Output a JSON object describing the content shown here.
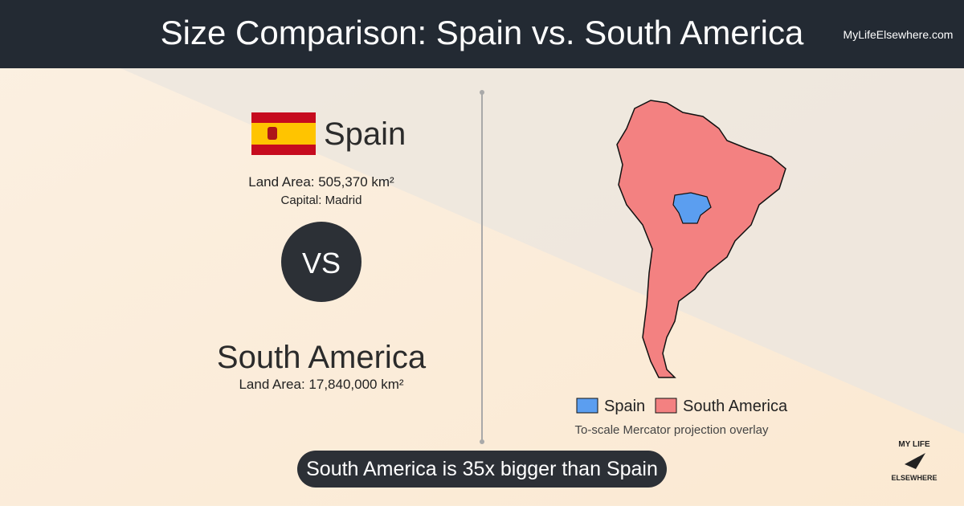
{
  "header": {
    "title": "Size Comparison: Spain vs. South America",
    "site": "MyLifeElsewhere.com"
  },
  "country1": {
    "name": "Spain",
    "land_area": "Land Area: 505,370 km²",
    "capital": "Capital: Madrid"
  },
  "vs": "VS",
  "country2": {
    "name": "South America",
    "land_area": "Land Area: 17,840,000 km²"
  },
  "legend": {
    "items": [
      "Spain",
      "South America"
    ],
    "caption": "To-scale Mercator projection overlay"
  },
  "summary": "South America is 35x bigger than Spain",
  "logo": {
    "top": "MY LIFE",
    "bottom": "ELSEWHERE"
  }
}
